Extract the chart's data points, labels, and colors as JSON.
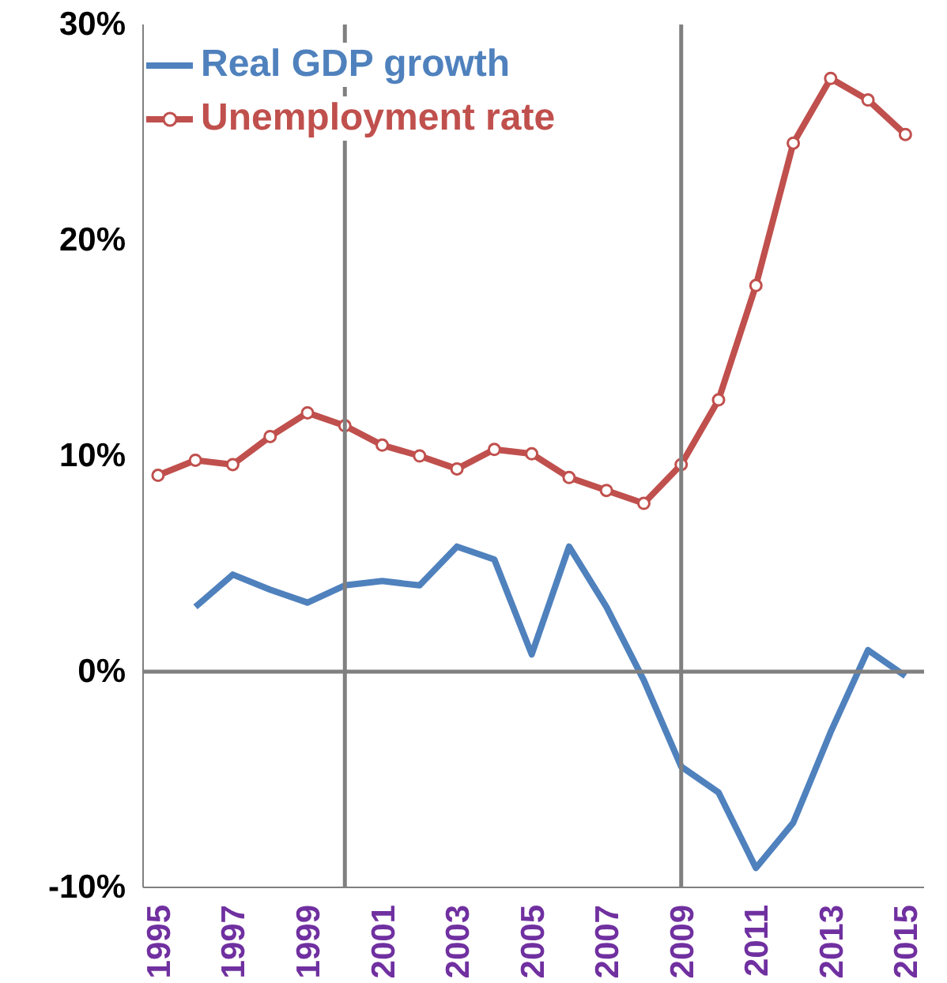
{
  "chart_data": {
    "type": "line",
    "x": [
      1995,
      1996,
      1997,
      1998,
      1999,
      2000,
      2001,
      2002,
      2003,
      2004,
      2005,
      2006,
      2007,
      2008,
      2009,
      2010,
      2011,
      2012,
      2013,
      2014,
      2015
    ],
    "series": [
      {
        "name": "Real GDP growth",
        "color": "#4f81bd",
        "marker": "none",
        "values": [
          null,
          3.0,
          4.5,
          3.8,
          3.2,
          4.0,
          4.2,
          4.0,
          5.8,
          5.2,
          0.8,
          5.8,
          3.0,
          -0.4,
          -4.4,
          -5.6,
          -9.1,
          -7.0,
          -2.8,
          1.0,
          -0.2
        ]
      },
      {
        "name": "Unemployment rate",
        "color": "#c0504d",
        "marker": "circle",
        "values": [
          9.1,
          9.8,
          9.6,
          10.9,
          12.0,
          11.4,
          10.5,
          10.0,
          9.4,
          10.3,
          10.1,
          9.0,
          8.4,
          7.8,
          9.6,
          12.6,
          17.9,
          24.5,
          27.5,
          26.5,
          24.9
        ]
      }
    ],
    "xlim": [
      1994.6,
      2015.5
    ],
    "xticks": [
      1995,
      1997,
      1999,
      2001,
      2003,
      2005,
      2007,
      2009,
      2011,
      2013,
      2015
    ],
    "ylim": [
      -10,
      30
    ],
    "yticks": [
      {
        "value": -10,
        "label": "-10%"
      },
      {
        "value": 0,
        "label": "0%"
      },
      {
        "value": 10,
        "label": "10%"
      },
      {
        "value": 20,
        "label": "20%"
      },
      {
        "value": 30,
        "label": "30%"
      }
    ],
    "ref_lines": [
      {
        "axis": "x",
        "value": 2000,
        "color": "#808080"
      },
      {
        "axis": "x",
        "value": 2009,
        "color": "#808080"
      },
      {
        "axis": "y",
        "value": 0,
        "color": "#808080"
      }
    ],
    "grid": false,
    "legend": "top left"
  }
}
